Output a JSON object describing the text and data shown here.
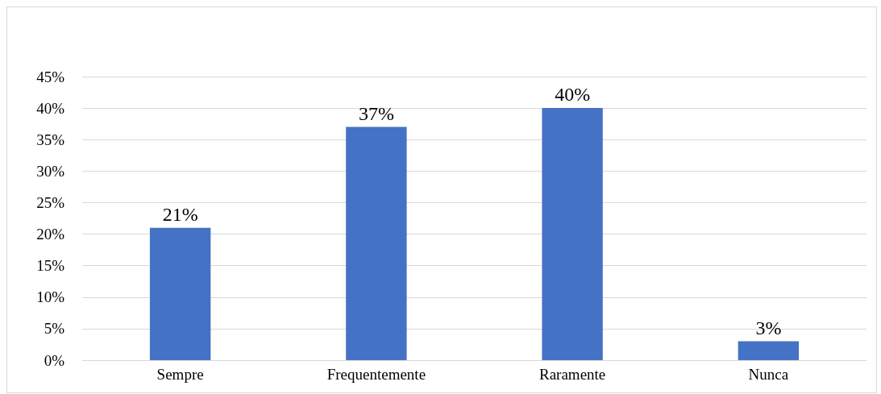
{
  "chart_data": {
    "type": "bar",
    "categories": [
      "Sempre",
      "Frequentemente",
      "Raramente",
      "Nunca"
    ],
    "values": [
      21,
      37,
      40,
      3
    ],
    "color": "#4472c4",
    "data_labels": true,
    "value_labels": [
      "21%",
      "37%",
      "40%",
      "3%"
    ],
    "ylim": [
      0,
      45
    ],
    "yticks": [
      {
        "value": 0,
        "label": "0%"
      },
      {
        "value": 5,
        "label": "5%"
      },
      {
        "value": 10,
        "label": "10%"
      },
      {
        "value": 15,
        "label": "15%"
      },
      {
        "value": 20,
        "label": "20%"
      },
      {
        "value": 25,
        "label": "25%"
      },
      {
        "value": 30,
        "label": "30%"
      },
      {
        "value": 35,
        "label": "35%"
      },
      {
        "value": 40,
        "label": "40%"
      },
      {
        "value": 45,
        "label": "45%"
      }
    ],
    "grid": "y"
  }
}
